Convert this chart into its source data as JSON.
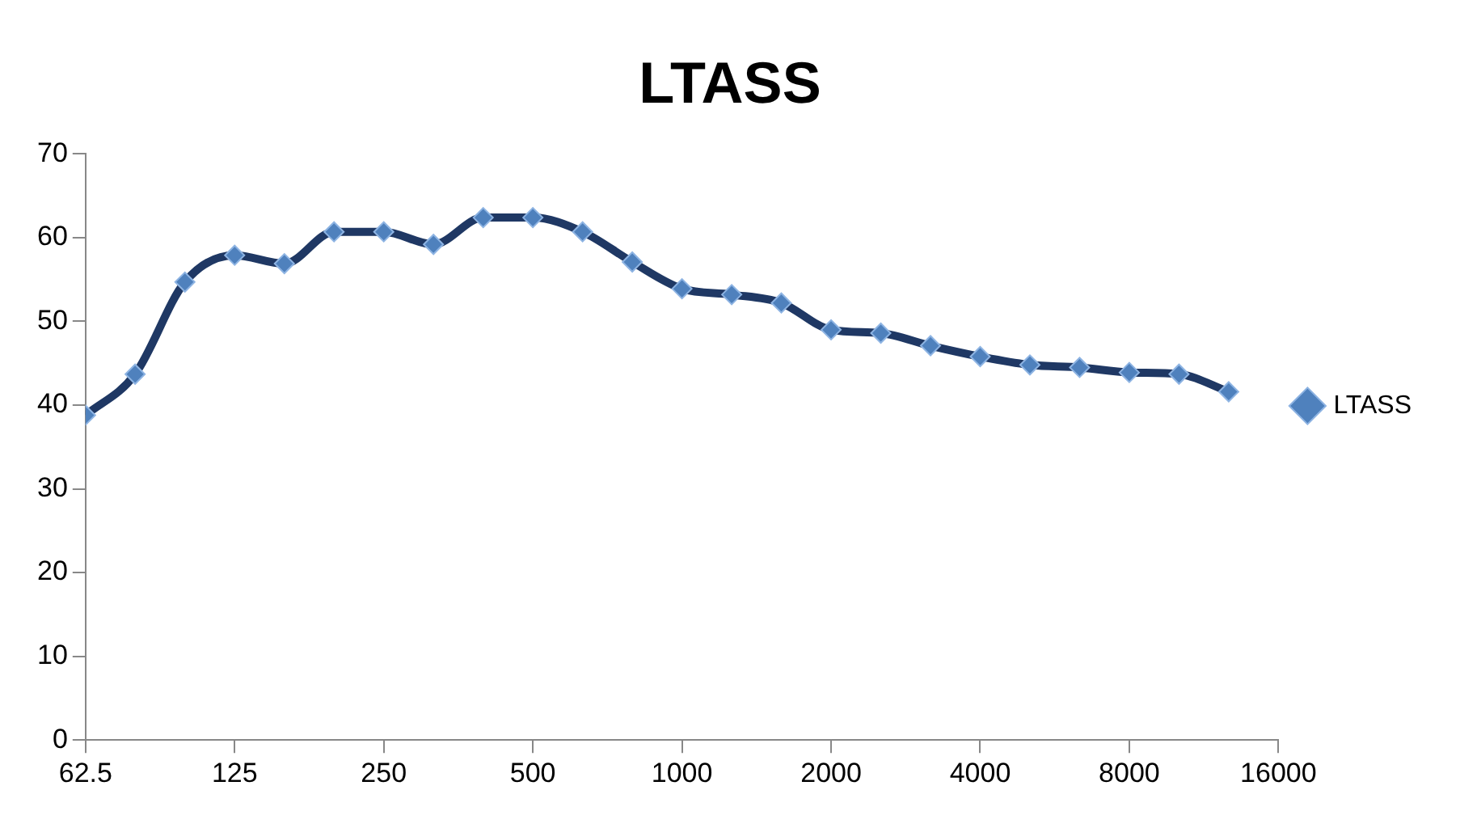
{
  "chart_data": {
    "type": "line",
    "title": "LTASS",
    "x": [
      62.5,
      78.7,
      99.2,
      125,
      157.5,
      198.4,
      250,
      315,
      396.9,
      500,
      630,
      793.7,
      1000,
      1260,
      1587,
      2000,
      2520,
      3175,
      4000,
      5040,
      6350,
      8000,
      10080,
      12700
    ],
    "series": [
      {
        "name": "LTASS",
        "color": "#1f3864",
        "values": [
          38.8,
          43.7,
          54.7,
          57.9,
          56.9,
          60.7,
          60.7,
          59.2,
          62.4,
          62.4,
          60.7,
          57.1,
          53.9,
          53.2,
          52.2,
          49.0,
          48.6,
          47.1,
          45.8,
          44.8,
          44.5,
          43.9,
          43.7,
          41.6
        ]
      }
    ],
    "log": "x",
    "xlim": [
      62.5,
      16000
    ],
    "xticks": [
      62.5,
      125,
      250,
      500,
      1000,
      2000,
      4000,
      8000,
      16000
    ],
    "ylim": [
      0,
      70
    ],
    "yticks": [
      0,
      10,
      20,
      30,
      40,
      50,
      60,
      70
    ],
    "grid": false,
    "legend": "right",
    "marker": "diamond",
    "line_style": "solid"
  }
}
